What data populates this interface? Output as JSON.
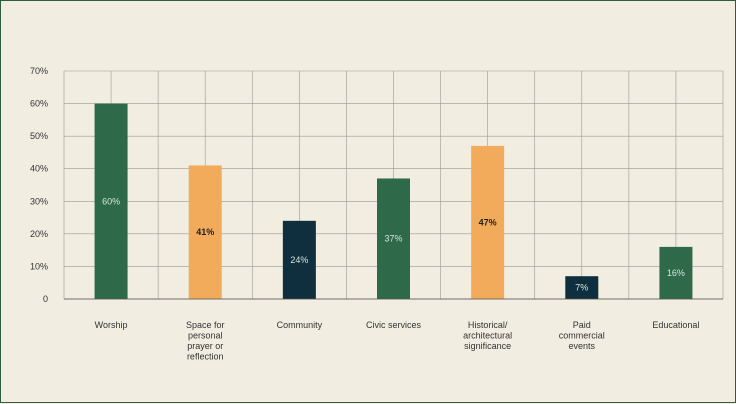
{
  "chart_data": {
    "type": "bar",
    "categories": [
      [
        "Worship"
      ],
      [
        "Space for",
        "personal",
        "prayer or",
        "reflection"
      ],
      [
        "Community"
      ],
      [
        "Civic services"
      ],
      [
        "Historical/",
        "architectural",
        "significance"
      ],
      [
        "Paid",
        "commercial",
        "events"
      ],
      [
        "Educational"
      ]
    ],
    "values": [
      60,
      41,
      24,
      37,
      47,
      7,
      16
    ],
    "data_labels": [
      "60%",
      "41%",
      "24%",
      "37%",
      "47%",
      "7%",
      "16%"
    ],
    "bar_colors": [
      "#2e6a4a",
      "#f2ab5a",
      "#0f2f3f",
      "#2e6a4a",
      "#f2ab5a",
      "#0f2f3f",
      "#2e6a4a"
    ],
    "label_colors": [
      "#d6e4db",
      "#1f1f1f",
      "#d6e4db",
      "#d6e4db",
      "#1f1f1f",
      "#d6e4db",
      "#d6e4db"
    ],
    "label_bold": [
      false,
      true,
      false,
      false,
      true,
      false,
      false
    ],
    "y_ticks": [
      "0",
      "10%",
      "20%",
      "30%",
      "40%",
      "50%",
      "60%",
      "70%"
    ],
    "ylim": [
      0,
      70
    ],
    "grid": true,
    "title": "",
    "xlabel": "",
    "ylabel": ""
  }
}
